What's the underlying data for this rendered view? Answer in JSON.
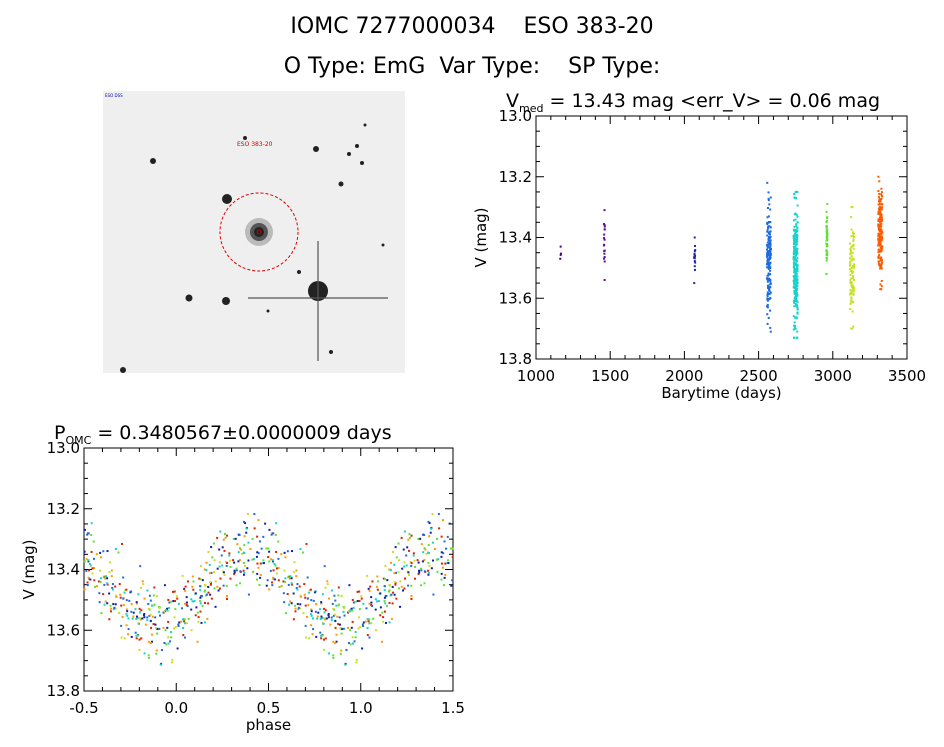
{
  "header": {
    "line1": "IOMC 7277000034    ESO 383-20",
    "line2": "O Type: EmG  Var Type:    SP Type:"
  },
  "finder": {
    "label": "ESO 383-20",
    "corner_label": "ESO DSS"
  },
  "charts": [
    {
      "id": "lightcurve",
      "type": "scatter",
      "title_main": "V",
      "title_sub": "med",
      "title_rest": " = 13.43 mag <err_V> = 0.06 mag",
      "xlabel": "Barytime (days)",
      "ylabel": "V (mag)",
      "xlim": [
        1000,
        3500
      ],
      "ylim": [
        13.8,
        13.0
      ],
      "y_inverted": true,
      "xticks": [
        "1000",
        "1500",
        "2000",
        "2500",
        "3000",
        "3500"
      ],
      "yticks": [
        "13.0",
        "13.2",
        "13.4",
        "13.6",
        "13.8"
      ],
      "grid": false,
      "color_scale": "rainbow by time"
    },
    {
      "id": "phased",
      "type": "scatter",
      "title_main": "P",
      "title_sub": "OMC",
      "title_rest": " = 0.3480567±0.0000009 days",
      "xlabel": "phase",
      "ylabel": "V (mag)",
      "xlim": [
        -0.5,
        1.5
      ],
      "ylim": [
        13.8,
        13.0
      ],
      "y_inverted": true,
      "xticks": [
        "-0.5",
        "0.0",
        "0.5",
        "1.0",
        "1.5"
      ],
      "yticks": [
        "13.0",
        "13.2",
        "13.4",
        "13.6",
        "13.8"
      ],
      "grid": false
    }
  ],
  "chart_data": [
    {
      "type": "scatter",
      "chart": "lightcurve",
      "clusters": [
        {
          "t": 1165,
          "mag_min": 13.43,
          "mag_max": 13.47,
          "n": 4,
          "color": "#4a0080"
        },
        {
          "t": 1460,
          "mag_min": 13.31,
          "mag_max": 13.54,
          "n": 18,
          "color": "#55119a"
        },
        {
          "t": 2070,
          "mag_min": 13.4,
          "mag_max": 13.55,
          "n": 16,
          "color": "#2020b0"
        },
        {
          "t": 2570,
          "mag_min": 13.22,
          "mag_max": 13.71,
          "n": 160,
          "color": "#1e6be0"
        },
        {
          "t": 2750,
          "mag_min": 13.25,
          "mag_max": 13.73,
          "n": 260,
          "color": "#18d2c8"
        },
        {
          "t": 2960,
          "mag_min": 13.29,
          "mag_max": 13.52,
          "n": 45,
          "color": "#60e030"
        },
        {
          "t": 3130,
          "mag_min": 13.3,
          "mag_max": 13.7,
          "n": 90,
          "color": "#c8e020"
        },
        {
          "t": 3320,
          "mag_min": 13.2,
          "mag_max": 13.57,
          "n": 170,
          "color": "#ff5a00"
        }
      ]
    },
    {
      "type": "scatter",
      "chart": "phased",
      "model": {
        "mean_mag": 13.46,
        "amplitude": 0.12,
        "scatter": 0.065,
        "n_points": 420
      },
      "phase_range": [
        -0.5,
        1.5
      ],
      "colors": [
        "#1020a0",
        "#1e6be0",
        "#18d2c8",
        "#60e030",
        "#c8e020",
        "#ff9a00",
        "#e02000"
      ]
    }
  ]
}
